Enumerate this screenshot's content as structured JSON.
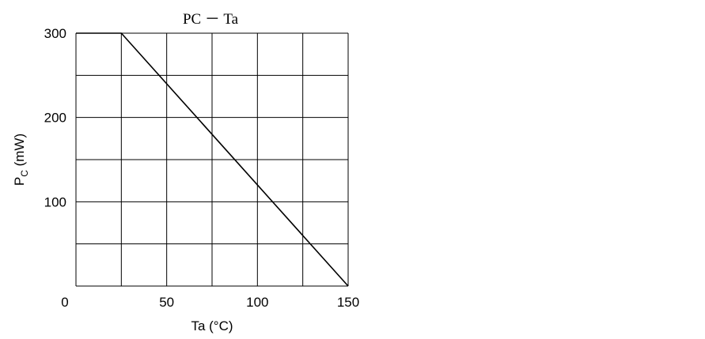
{
  "chart_data": {
    "type": "line",
    "title": "PC － Ta",
    "xlabel": "Ta (°C)",
    "ylabel_main": "P",
    "ylabel_sub": "C",
    "ylabel_unit": " (mW)",
    "xlim": [
      0,
      150
    ],
    "ylim": [
      0,
      300
    ],
    "grid": true,
    "x_gridlines": [
      0,
      25,
      50,
      75,
      100,
      125,
      150
    ],
    "y_gridlines": [
      0,
      50,
      100,
      150,
      200,
      250,
      300
    ],
    "x_ticks": [
      {
        "value": 50,
        "label": "50"
      },
      {
        "value": 100,
        "label": "100"
      },
      {
        "value": 150,
        "label": "150"
      }
    ],
    "y_ticks": [
      {
        "value": 100,
        "label": "100"
      },
      {
        "value": 200,
        "label": "200"
      },
      {
        "value": 300,
        "label": "300"
      }
    ],
    "origin_label": "0",
    "series": [
      {
        "x": [
          0,
          25,
          150
        ],
        "y": [
          300,
          300,
          0
        ]
      }
    ]
  }
}
